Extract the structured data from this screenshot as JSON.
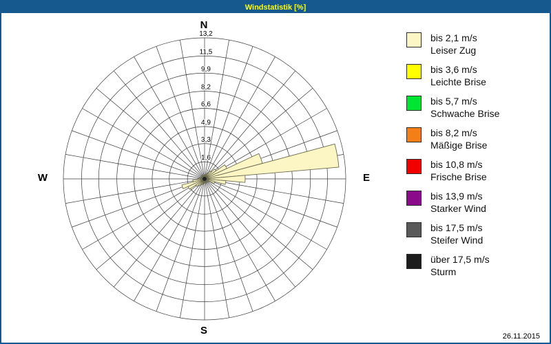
{
  "window": {
    "title": "Windstatistik [%]"
  },
  "footer": {
    "date": "26.11.2015"
  },
  "compass": {
    "north": "N",
    "east": "E",
    "south": "S",
    "west": "W"
  },
  "colors": {
    "titlebar_bg": "#16598F",
    "titlebar_text": "#FFFF00",
    "page_border": "#16598F",
    "grid_line": "#3a3a3a",
    "petal_fill": "#FCF5C4",
    "petal_outline": "#6B6B50"
  },
  "chart_data": {
    "type": "windrose",
    "title": "Windstatistik [%]",
    "units": "%",
    "grid": true,
    "legend_position": "right",
    "sector_width_deg": 10,
    "rlim": [
      0,
      13.2
    ],
    "radial_ticks": [
      1.6,
      3.3,
      4.9,
      6.6,
      8.2,
      9.9,
      11.5,
      13.2
    ],
    "radial_tick_labels": [
      "1,6",
      "3,3",
      "4,9",
      "6,6",
      "8,2",
      "9,9",
      "11,5",
      "13,2"
    ],
    "speed_classes": [
      {
        "speed": "bis 2,1 m/s",
        "name": "Leiser Zug",
        "color": "#FCF5C4"
      },
      {
        "speed": "bis 3,6 m/s",
        "name": "Leichte Brise",
        "color": "#FFFF00"
      },
      {
        "speed": "bis 5,7 m/s",
        "name": "Schwache Brise",
        "color": "#00E432"
      },
      {
        "speed": "bis 8,2 m/s",
        "name": "Mäßige Brise",
        "color": "#F57F17"
      },
      {
        "speed": "bis 10,8 m/s",
        "name": "Frische Brise",
        "color": "#F20000"
      },
      {
        "speed": "bis 13,9 m/s",
        "name": "Starker Wind",
        "color": "#8B0A8B"
      },
      {
        "speed": "bis 17,5 m/s",
        "name": "Steifer Wind",
        "color": "#595959"
      },
      {
        "speed": "über 17,5 m/s",
        "name": "Sturm",
        "color": "#1C1C1C"
      }
    ],
    "directions_deg": [
      0,
      10,
      20,
      30,
      40,
      50,
      60,
      70,
      80,
      90,
      100,
      110,
      120,
      130,
      140,
      150,
      160,
      170,
      180,
      190,
      200,
      210,
      220,
      230,
      240,
      250,
      260,
      270,
      280,
      290,
      300,
      310,
      320,
      330,
      340,
      350
    ],
    "series": [
      {
        "name": "bis 2,1 m/s",
        "color": "#FCF5C4",
        "values": [
          0.4,
          0.3,
          0.4,
          0.6,
          0.9,
          1.3,
          2.3,
          5.6,
          12.6,
          3.8,
          2.0,
          1.0,
          0.5,
          0.4,
          0.3,
          0.3,
          0.4,
          0.3,
          0.4,
          0.4,
          0.5,
          0.6,
          0.8,
          1.0,
          1.7,
          2.2,
          1.1,
          0.6,
          0.4,
          0.3,
          0.3,
          0.3,
          0.4,
          0.3,
          0.3,
          0.3
        ]
      }
    ]
  }
}
